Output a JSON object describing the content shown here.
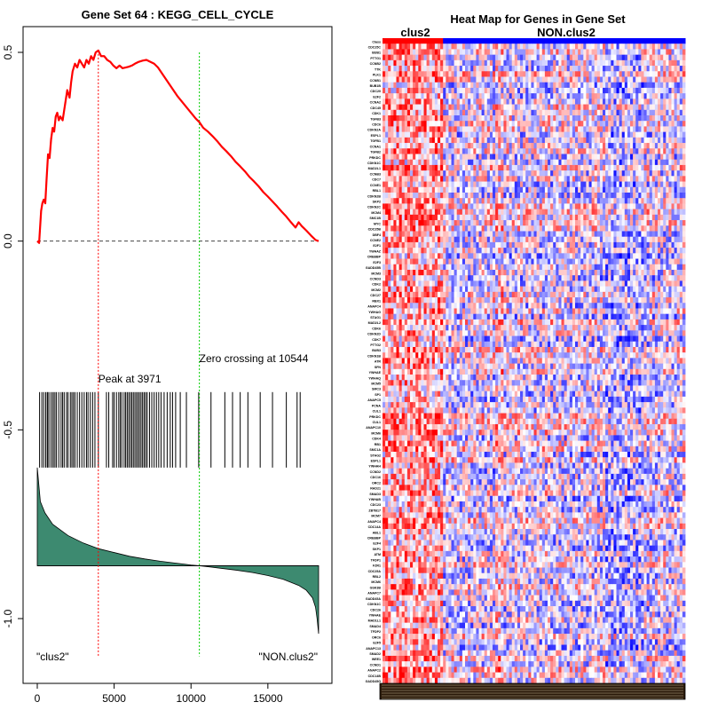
{
  "chart_data": [
    {
      "type": "line",
      "panel": "left",
      "title": "Gene Set  64 : KEGG_CELL_CYCLE",
      "xlim": [
        0,
        18500
      ],
      "ylim": [
        -1.1,
        0.55
      ],
      "x_ticks": [
        0,
        5000,
        10000,
        15000
      ],
      "x_tick_labels": [
        "0",
        "5000",
        "10000",
        "15000"
      ],
      "y_ticks": [
        0.5,
        0.0,
        -0.5,
        -1.0
      ],
      "y_tick_labels": [
        "0.5",
        "0.0",
        "-0.5",
        "-1.0"
      ],
      "series": [
        {
          "name": "running enrichment score",
          "color": "#ff0000",
          "x": [
            0,
            120,
            250,
            330,
            420,
            520,
            600,
            700,
            800,
            900,
            1000,
            1100,
            1200,
            1300,
            1400,
            1500,
            1650,
            1800,
            1950,
            2100,
            2200,
            2300,
            2450,
            2600,
            2750,
            2900,
            3050,
            3200,
            3350,
            3500,
            3650,
            3800,
            3971,
            4150,
            4350,
            4550,
            4750,
            4950,
            5150,
            5350,
            5550,
            5750,
            5950,
            6150,
            6350,
            6600,
            6850,
            7100,
            7350,
            7600,
            7850,
            8100,
            8350,
            8600,
            8850,
            9100,
            9400,
            9700,
            10000,
            10300,
            10544,
            10800,
            11100,
            11400,
            11700,
            12000,
            12300,
            12600,
            12900,
            13200,
            13500,
            13800,
            14100,
            14400,
            14700,
            15000,
            15300,
            15600,
            15900,
            16200,
            16500,
            16800,
            17000,
            17200,
            17500,
            17800,
            18100,
            18300
          ],
          "values": [
            0.0,
            -0.005,
            0.08,
            0.1,
            0.11,
            0.1,
            0.16,
            0.23,
            0.22,
            0.27,
            0.3,
            0.29,
            0.33,
            0.34,
            0.32,
            0.33,
            0.32,
            0.36,
            0.4,
            0.38,
            0.42,
            0.45,
            0.47,
            0.46,
            0.48,
            0.47,
            0.46,
            0.48,
            0.47,
            0.49,
            0.48,
            0.5,
            0.505,
            0.49,
            0.49,
            0.48,
            0.475,
            0.465,
            0.458,
            0.465,
            0.458,
            0.46,
            0.462,
            0.465,
            0.47,
            0.475,
            0.478,
            0.48,
            0.475,
            0.47,
            0.46,
            0.445,
            0.43,
            0.415,
            0.4,
            0.385,
            0.37,
            0.355,
            0.34,
            0.325,
            0.315,
            0.3,
            0.29,
            0.278,
            0.265,
            0.25,
            0.238,
            0.225,
            0.21,
            0.198,
            0.185,
            0.17,
            0.158,
            0.145,
            0.13,
            0.118,
            0.105,
            0.092,
            0.078,
            0.065,
            0.05,
            0.036,
            0.05,
            0.04,
            0.028,
            0.015,
            0.003,
            0.0
          ]
        }
      ],
      "hits": [
        150,
        300,
        420,
        550,
        650,
        700,
        820,
        950,
        1050,
        1150,
        1250,
        1400,
        1550,
        1650,
        1750,
        1900,
        2000,
        2150,
        2250,
        2350,
        2450,
        2600,
        2750,
        2900,
        3050,
        3200,
        3300,
        3450,
        3600,
        3750,
        3971,
        4500,
        4650,
        4900,
        5000,
        5150,
        5300,
        5400,
        5500,
        5650,
        5750,
        5850,
        5950,
        6050,
        6150,
        6250,
        6350,
        6450,
        6550,
        6650,
        6750,
        6850,
        6950,
        7050,
        7150,
        7300,
        7450,
        7600,
        7750,
        7900,
        8050,
        8250,
        8450,
        8650,
        8800,
        9000,
        9300,
        9700,
        10500,
        11300,
        12200,
        12700,
        13200,
        13700,
        14500,
        15300,
        16200,
        16900,
        17100
      ],
      "peak_x": 3971,
      "peak_label": "Peak at 3971",
      "zero_crossing_x": 10544,
      "zero_label": "Zero crossing at 10544",
      "ranked_metric": {
        "color": "#3d8a70",
        "baseline": -0.86,
        "x": [
          0,
          200,
          500,
          1000,
          2000,
          3000,
          4000,
          5000,
          6000,
          7000,
          8000,
          9000,
          10000,
          10544,
          11000,
          12000,
          13000,
          14000,
          15000,
          16000,
          17000,
          17500,
          17900,
          18100,
          18200,
          18300
        ],
        "values": [
          -0.6,
          -0.69,
          -0.72,
          -0.75,
          -0.78,
          -0.8,
          -0.815,
          -0.825,
          -0.835,
          -0.842,
          -0.848,
          -0.853,
          -0.858,
          -0.86,
          -0.862,
          -0.867,
          -0.872,
          -0.878,
          -0.886,
          -0.896,
          -0.912,
          -0.925,
          -0.945,
          -0.97,
          -1.0,
          -1.04
        ]
      },
      "left_label": "\"clus2\"",
      "right_label": "\"NON.clus2\""
    },
    {
      "type": "heatmap",
      "panel": "right",
      "title": "Heat Map for Genes in Gene Set",
      "group_labels": [
        "clus2",
        "NON.clus2"
      ],
      "group_colors": [
        "#ff0000",
        "#0000ff"
      ],
      "group_sizes": [
        22,
        88
      ],
      "row_labels": [
        "Class",
        "CDC25C",
        "BUB1",
        "PTTG1",
        "CCNB2",
        "TTK",
        "PLK1",
        "CCNB1",
        "BUB1B",
        "CDC20",
        "E2F2",
        "CCNA2",
        "CDC45",
        "CDK1",
        "TGFB3",
        "CDC6",
        "CDKN2A",
        "ESPL1",
        "TGFB1",
        "CCNA1",
        "TGFB2",
        "PRKDC",
        "CDKN1C",
        "MAD2L1",
        "CCNB3",
        "CDC7",
        "CCNE1",
        "RBL1",
        "CDKN2B",
        "SKP2",
        "CDKN2C",
        "MCM4",
        "SMC1B",
        "MYC",
        "CDC25B",
        "DBF4",
        "CCNE2",
        "E2F1",
        "YWHAZ",
        "CREBBP",
        "E2F3",
        "GADD45B",
        "MCM3",
        "CCND3",
        "CDK2",
        "MCM2",
        "CDC27",
        "RBX1",
        "ANAPC4",
        "YWHAG",
        "STAG1",
        "MAD2L2",
        "CDK6",
        "CDKN2D",
        "CDK7",
        "PTTG2",
        "BUB3",
        "CDKN1B",
        "ATR",
        "SFN",
        "YWHAE",
        "YWHAQ",
        "MCM5",
        "SMC3",
        "SP1",
        "ANAPC5",
        "PCNA",
        "CUL1",
        "PRKDC",
        "CUL1",
        "ANAPC10",
        "MCM6",
        "CDK4",
        "RB1",
        "SMC1A",
        "STAG2",
        "ESPL1",
        "YWHAH",
        "CCND2",
        "CDC16",
        "ORC2",
        "RAD21",
        "SMAD3",
        "YWHAB",
        "CDC23",
        "ZBTB17",
        "MCM7",
        "ANAPC4",
        "CDC14A",
        "ABL1",
        "CREBBP",
        "E2F4",
        "SKP1",
        "ATM",
        "TFDP1",
        "FZR1",
        "CDC25A",
        "RBL2",
        "MCM6",
        "GSK3B",
        "ANAPC7",
        "GADD45A",
        "CDKN1C",
        "CDC26",
        "YWHAE",
        "MAD1L1",
        "SMAD4",
        "TFDP2",
        "ORC6",
        "E2F5",
        "ANAPC13",
        "SMAD2",
        "WEE1",
        "CCND1",
        "ANAPC2",
        "CDC14B",
        "GADD45G"
      ]
    }
  ]
}
